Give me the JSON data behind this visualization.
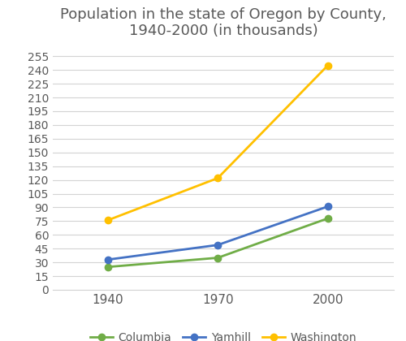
{
  "title": "Population in the state of Oregon by County,\n1940-2000 (in thousands)",
  "x_values": [
    1940,
    1970,
    2000
  ],
  "x_labels": [
    "1940",
    "1970",
    "2000"
  ],
  "series": {
    "Columbia": {
      "values": [
        25,
        35,
        78
      ],
      "color": "#70ad47",
      "marker": "o"
    },
    "Yamhill": {
      "values": [
        33,
        49,
        91
      ],
      "color": "#4472c4",
      "marker": "o"
    },
    "Washington": {
      "values": [
        76,
        122,
        245
      ],
      "color": "#ffc000",
      "marker": "o"
    }
  },
  "yticks": [
    0,
    15,
    30,
    45,
    60,
    75,
    90,
    105,
    120,
    135,
    150,
    165,
    180,
    195,
    210,
    225,
    240,
    255
  ],
  "ylim": [
    0,
    268
  ],
  "xlim": [
    1925,
    2018
  ],
  "background_color": "#ffffff",
  "grid_color": "#d3d3d3",
  "title_fontsize": 13,
  "title_color": "#595959",
  "tick_color": "#595959",
  "tick_fontsize": 10,
  "xtick_fontsize": 11,
  "legend_ncol": 3,
  "legend_fontsize": 10
}
